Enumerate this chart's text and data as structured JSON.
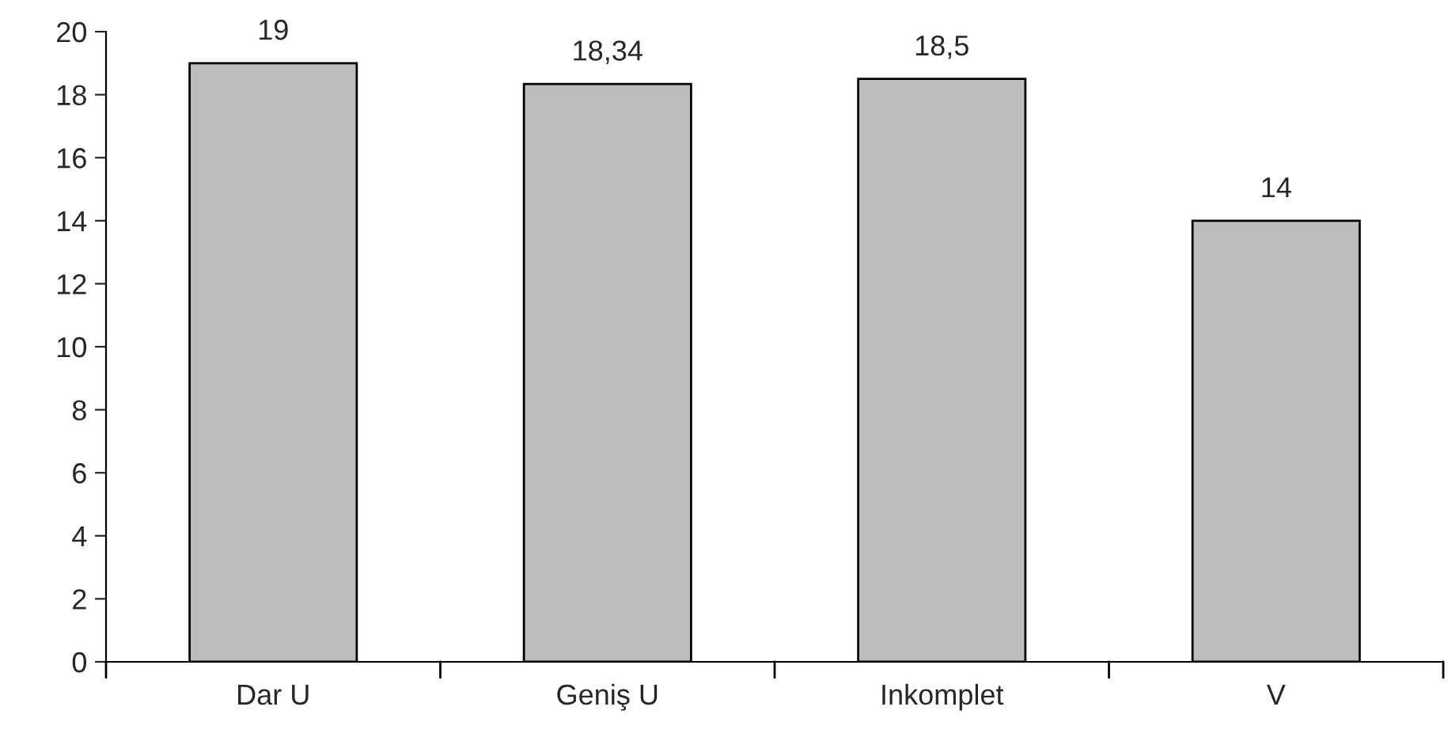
{
  "chart_data": {
    "type": "bar",
    "categories": [
      "Dar U",
      "Geniş U",
      "Inkomplet",
      "V"
    ],
    "values": [
      19,
      18.34,
      18.5,
      14
    ],
    "value_labels": [
      "19",
      "18,34",
      "18,5",
      "14"
    ],
    "color": "#bdbdbd",
    "ylim": [
      0,
      20
    ],
    "yticks": [
      0,
      2,
      4,
      6,
      8,
      10,
      12,
      14,
      16,
      18,
      20
    ],
    "grid": false
  }
}
